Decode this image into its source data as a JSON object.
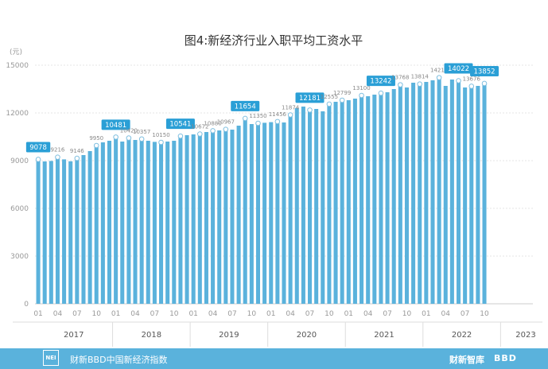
{
  "chart_data": {
    "type": "bar",
    "title": "图4:新经济行业入职平均工资水平",
    "unit_label": "(元)",
    "ylim": [
      0,
      15000
    ],
    "yticks": [
      0,
      3000,
      6000,
      9000,
      12000,
      15000
    ],
    "grid": true,
    "legend": "none",
    "bar_color": "#5ab2dc",
    "highlight_color": "#2a9fd6",
    "values": [
      9078,
      8950,
      8980,
      9216,
      9080,
      8960,
      9146,
      9350,
      9600,
      9950,
      10150,
      10250,
      10481,
      10200,
      10420,
      10300,
      10357,
      10250,
      10180,
      10150,
      10200,
      10250,
      10541,
      10600,
      10650,
      10672,
      10800,
      10880,
      10900,
      10967,
      10950,
      11200,
      11654,
      11300,
      11350,
      11380,
      11420,
      11456,
      11400,
      11874,
      12300,
      12400,
      12181,
      12250,
      12100,
      12555,
      12700,
      12799,
      12800,
      12900,
      13100,
      13050,
      13150,
      13242,
      13300,
      13500,
      13768,
      13600,
      13900,
      13814,
      13950,
      14050,
      14218,
      13700,
      14100,
      14022,
      13600,
      13676,
      13700,
      13852
    ],
    "value_labels": [
      {
        "i": 0,
        "text": "9078",
        "highlight": true
      },
      {
        "i": 3,
        "text": "9216",
        "highlight": false
      },
      {
        "i": 6,
        "text": "9146",
        "highlight": false
      },
      {
        "i": 9,
        "text": "9950",
        "highlight": false
      },
      {
        "i": 12,
        "text": "10481",
        "highlight": true
      },
      {
        "i": 14,
        "text": "10420",
        "highlight": false
      },
      {
        "i": 16,
        "text": "10357",
        "highlight": false
      },
      {
        "i": 19,
        "text": "10150",
        "highlight": false
      },
      {
        "i": 22,
        "text": "10541",
        "highlight": true
      },
      {
        "i": 25,
        "text": "10672",
        "highlight": false
      },
      {
        "i": 27,
        "text": "10880",
        "highlight": false
      },
      {
        "i": 29,
        "text": "10967",
        "highlight": false
      },
      {
        "i": 32,
        "text": "11654",
        "highlight": true
      },
      {
        "i": 34,
        "text": "11350",
        "highlight": false
      },
      {
        "i": 37,
        "text": "11456",
        "highlight": false
      },
      {
        "i": 39,
        "text": "11874",
        "highlight": false
      },
      {
        "i": 42,
        "text": "12181",
        "highlight": true
      },
      {
        "i": 45,
        "text": "12555",
        "highlight": false
      },
      {
        "i": 47,
        "text": "12799",
        "highlight": false
      },
      {
        "i": 50,
        "text": "13100",
        "highlight": false
      },
      {
        "i": 53,
        "text": "13242",
        "highlight": true
      },
      {
        "i": 56,
        "text": "13768",
        "highlight": false
      },
      {
        "i": 59,
        "text": "13814",
        "highlight": false
      },
      {
        "i": 62,
        "text": "14218",
        "highlight": false
      },
      {
        "i": 65,
        "text": "14022",
        "highlight": true
      },
      {
        "i": 67,
        "text": "13676",
        "highlight": false
      },
      {
        "i": 69,
        "text": "13852",
        "highlight": true
      }
    ],
    "xtick_labels": [
      {
        "i": 0,
        "text": "01"
      },
      {
        "i": 3,
        "text": "04"
      },
      {
        "i": 6,
        "text": "07"
      },
      {
        "i": 9,
        "text": "10"
      },
      {
        "i": 12,
        "text": "01"
      },
      {
        "i": 15,
        "text": "04"
      },
      {
        "i": 18,
        "text": "07"
      },
      {
        "i": 21,
        "text": "10"
      },
      {
        "i": 24,
        "text": "01"
      },
      {
        "i": 27,
        "text": "04"
      },
      {
        "i": 30,
        "text": "07"
      },
      {
        "i": 33,
        "text": "10"
      },
      {
        "i": 36,
        "text": "01"
      },
      {
        "i": 39,
        "text": "04"
      },
      {
        "i": 42,
        "text": "07"
      },
      {
        "i": 45,
        "text": "10"
      },
      {
        "i": 48,
        "text": "01"
      },
      {
        "i": 51,
        "text": "04"
      },
      {
        "i": 54,
        "text": "07"
      },
      {
        "i": 57,
        "text": "10"
      },
      {
        "i": 60,
        "text": "01"
      },
      {
        "i": 63,
        "text": "04"
      },
      {
        "i": 66,
        "text": "07"
      },
      {
        "i": 69,
        "text": "10"
      }
    ],
    "years": [
      {
        "label": "2017",
        "start": 0,
        "end": 11
      },
      {
        "label": "2018",
        "start": 12,
        "end": 23
      },
      {
        "label": "2019",
        "start": 24,
        "end": 35
      },
      {
        "label": "2020",
        "start": 36,
        "end": 47
      },
      {
        "label": "2021",
        "start": 48,
        "end": 59
      },
      {
        "label": "2022",
        "start": 60,
        "end": 71
      },
      {
        "label": "2023",
        "start": 72,
        "end": 76
      }
    ]
  },
  "footer": {
    "logo_text": "NEI",
    "source": "财新BBD中国新经济指数",
    "brand1": "财新智库",
    "brand2": "BBD"
  }
}
